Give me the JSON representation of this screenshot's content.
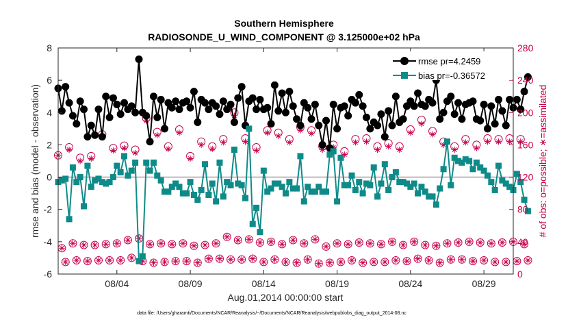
{
  "chart_data": {
    "type": "line",
    "title": [
      "Southern Hemisphere",
      "RADIOSONDE_U_WIND_COMPONENT @ 3.125000e+02 hPa"
    ],
    "xlabel": "Aug.01,2014 00:00:00 start",
    "ylabel_left": "rmse and bias (model - observation)",
    "ylabel_right": "# of obs: o=possible; ∗=assimilated",
    "footnote": "data file: /Users/gharamti/Documents/NCAR/Reanalysis/~/Documents/NCAR/Reanalysis/webpub/obs_diag_output_2014-08.nc",
    "xlim": [
      1,
      32
    ],
    "ylim_left": [
      -6,
      8
    ],
    "ylim_right": [
      0,
      280
    ],
    "x_ticks": [
      {
        "x": 5,
        "label": "08/04"
      },
      {
        "x": 10,
        "label": "08/09"
      },
      {
        "x": 15,
        "label": "08/14"
      },
      {
        "x": 20,
        "label": "08/19"
      },
      {
        "x": 25,
        "label": "08/24"
      },
      {
        "x": 30,
        "label": "08/29"
      }
    ],
    "y_ticks_left": [
      "8",
      "6",
      "4",
      "2",
      "0",
      "-2",
      "-4",
      "-6"
    ],
    "y_ticks_right": [
      "280",
      "240",
      "200",
      "160",
      "120",
      "80",
      "40",
      "0"
    ],
    "grid": false,
    "zero_line": true,
    "x_start": 1.0,
    "x_step": 0.25,
    "colors": {
      "rmse": "#000000",
      "bias": "#0e8b89",
      "obs": "#c8004b",
      "zero": "#c0b8c0"
    },
    "series": [
      {
        "name": "rmse",
        "legend": "rmse pr=4.2459",
        "values": [
          5.5,
          4.1,
          5.6,
          4.6,
          3.8,
          3.3,
          4.7,
          4.2,
          2.5,
          3.2,
          2.6,
          4.2,
          2.5,
          5.0,
          3.7,
          4.9,
          4.5,
          3.9,
          4.6,
          4.2,
          4.4,
          4.0,
          7.3,
          4.0,
          3.8,
          2.2,
          5.0,
          3.7,
          4.8,
          3.0,
          4.6,
          4.3,
          4.7,
          4.2,
          4.6,
          4.7,
          4.3,
          5.3,
          3.4,
          4.8,
          4.6,
          4.2,
          4.6,
          4.4,
          3.9,
          4.7,
          4.2,
          4.5,
          3.4,
          4.9,
          5.6,
          3.2,
          4.7,
          4.9,
          4.2,
          4.8,
          4.2,
          4.3,
          3.3,
          5.7,
          4.1,
          5.2,
          4.0,
          5.3,
          4.4,
          3.6,
          3.2,
          4.6,
          4.3,
          3.6,
          4.5,
          3.2,
          2.0,
          3.5,
          1.8,
          4.5,
          3.0,
          4.3,
          4.4,
          3.8,
          4.8,
          4.6,
          5.1,
          4.4,
          3.7,
          3.0,
          3.4,
          3.2,
          3.9,
          2.5,
          4.1,
          3.2,
          5.0,
          3.4,
          3.6,
          4.4,
          4.7,
          4.4,
          5.2,
          4.5,
          4.4,
          4.8,
          4.6,
          6.0,
          3.6,
          4.0,
          4.7,
          5.0,
          3.9,
          4.6,
          3.6,
          4.5,
          4.6,
          4.7,
          3.6,
          3.5,
          4.5,
          3.0,
          4.4,
          3.3,
          4.8,
          4.1,
          3.2,
          4.8,
          4.3,
          4.8,
          4.2,
          5.3,
          6.2
        ]
      },
      {
        "name": "bias",
        "legend": "bias pr=-0.36572",
        "values": [
          -0.3,
          -0.2,
          -0.1,
          -2.6,
          0.6,
          -0.3,
          0.0,
          -1.8,
          0.7,
          -0.6,
          -0.2,
          -0.1,
          -0.3,
          -0.4,
          -0.3,
          0.0,
          0.7,
          0.3,
          1.3,
          0.1,
          0.4,
          0.9,
          -5.2,
          -4.9,
          0.9,
          0.4,
          0.9,
          0.1,
          -0.2,
          -0.9,
          -0.9,
          -0.6,
          -0.4,
          -0.6,
          -1.0,
          -1.0,
          -0.3,
          -1.1,
          -1.4,
          -0.8,
          0.8,
          -1.1,
          -0.4,
          -1.5,
          0.9,
          -1.2,
          -0.3,
          -0.5,
          1.7,
          -0.4,
          -0.5,
          -1.3,
          3.0,
          -2.9,
          -1.9,
          -3.4,
          0.4,
          -0.9,
          -0.7,
          -0.4,
          -0.4,
          -0.6,
          -1.0,
          -0.3,
          -0.7,
          -0.7,
          1.3,
          -1.5,
          -0.6,
          -0.9,
          -0.9,
          -0.6,
          -0.9,
          -0.9,
          1.4,
          1.6,
          -1.5,
          1.2,
          -0.5,
          -0.5,
          0.1,
          -0.8,
          -0.3,
          -1.0,
          -0.4,
          -0.5,
          0.6,
          -1.2,
          -0.4,
          0.8,
          -0.8,
          0.0,
          0.3,
          -0.3,
          -0.3,
          -0.4,
          -0.6,
          -0.4,
          -1.0,
          -0.6,
          -0.9,
          -1.2,
          -1.2,
          -1.7,
          -0.7,
          0.5,
          2.2,
          -0.5,
          1.2,
          1.0,
          0.9,
          1.1,
          1.0,
          0.5,
          0.9,
          0.6,
          0.4,
          0.1,
          -0.3,
          -0.8,
          0.7,
          -0.2,
          -0.4,
          -0.6,
          -0.8,
          0.2,
          -0.3,
          -1.4,
          -2.1
        ]
      },
      {
        "name": "obs_possible",
        "legend": "",
        "values": [
          147,
          32,
          15,
          157,
          38,
          17,
          144,
          36,
          16,
          146,
          36,
          17,
          173,
          37,
          17,
          156,
          38,
          17,
          159,
          42,
          20,
          154,
          44,
          16,
          193,
          37,
          14,
          176,
          38,
          15,
          158,
          37,
          16,
          179,
          38,
          16,
          146,
          35,
          14,
          164,
          36,
          19,
          158,
          38,
          19,
          167,
          46,
          18,
          200,
          42,
          18,
          168,
          43,
          19,
          157,
          39,
          15,
          178,
          40,
          18,
          175,
          37,
          15,
          167,
          42,
          14,
          182,
          38,
          18,
          178,
          43,
          13,
          158,
          34,
          14,
          160,
          38,
          15,
          152,
          37,
          17,
          167,
          39,
          14,
          168,
          38,
          15,
          158,
          37,
          15,
          162,
          40,
          17,
          158,
          36,
          16,
          179,
          40,
          19,
          191,
          36,
          17,
          177,
          35,
          14,
          164,
          38,
          18,
          158,
          39,
          18,
          167,
          40,
          16,
          160,
          39,
          17,
          168,
          38,
          15,
          167,
          39,
          15,
          168,
          40,
          16,
          167,
          37,
          17
        ]
      },
      {
        "name": "obs_assimilated",
        "legend": "",
        "values": [
          147,
          32,
          15,
          154,
          38,
          17,
          140,
          36,
          16,
          143,
          36,
          17,
          170,
          37,
          17,
          153,
          38,
          17,
          156,
          42,
          20,
          150,
          44,
          16,
          190,
          37,
          14,
          172,
          38,
          15,
          155,
          37,
          16,
          175,
          38,
          16,
          143,
          35,
          14,
          160,
          36,
          19,
          155,
          38,
          19,
          163,
          46,
          18,
          196,
          42,
          18,
          164,
          43,
          19,
          153,
          39,
          15,
          175,
          40,
          18,
          171,
          37,
          15,
          163,
          42,
          14,
          178,
          38,
          18,
          174,
          43,
          13,
          154,
          34,
          14,
          157,
          38,
          15,
          148,
          37,
          17,
          163,
          39,
          14,
          164,
          38,
          15,
          154,
          37,
          15,
          158,
          40,
          17,
          154,
          36,
          16,
          175,
          40,
          19,
          186,
          36,
          17,
          173,
          35,
          14,
          160,
          38,
          18,
          154,
          39,
          18,
          163,
          40,
          16,
          156,
          39,
          17,
          164,
          38,
          15,
          164,
          39,
          15,
          164,
          40,
          16,
          164,
          37,
          17
        ]
      }
    ]
  }
}
